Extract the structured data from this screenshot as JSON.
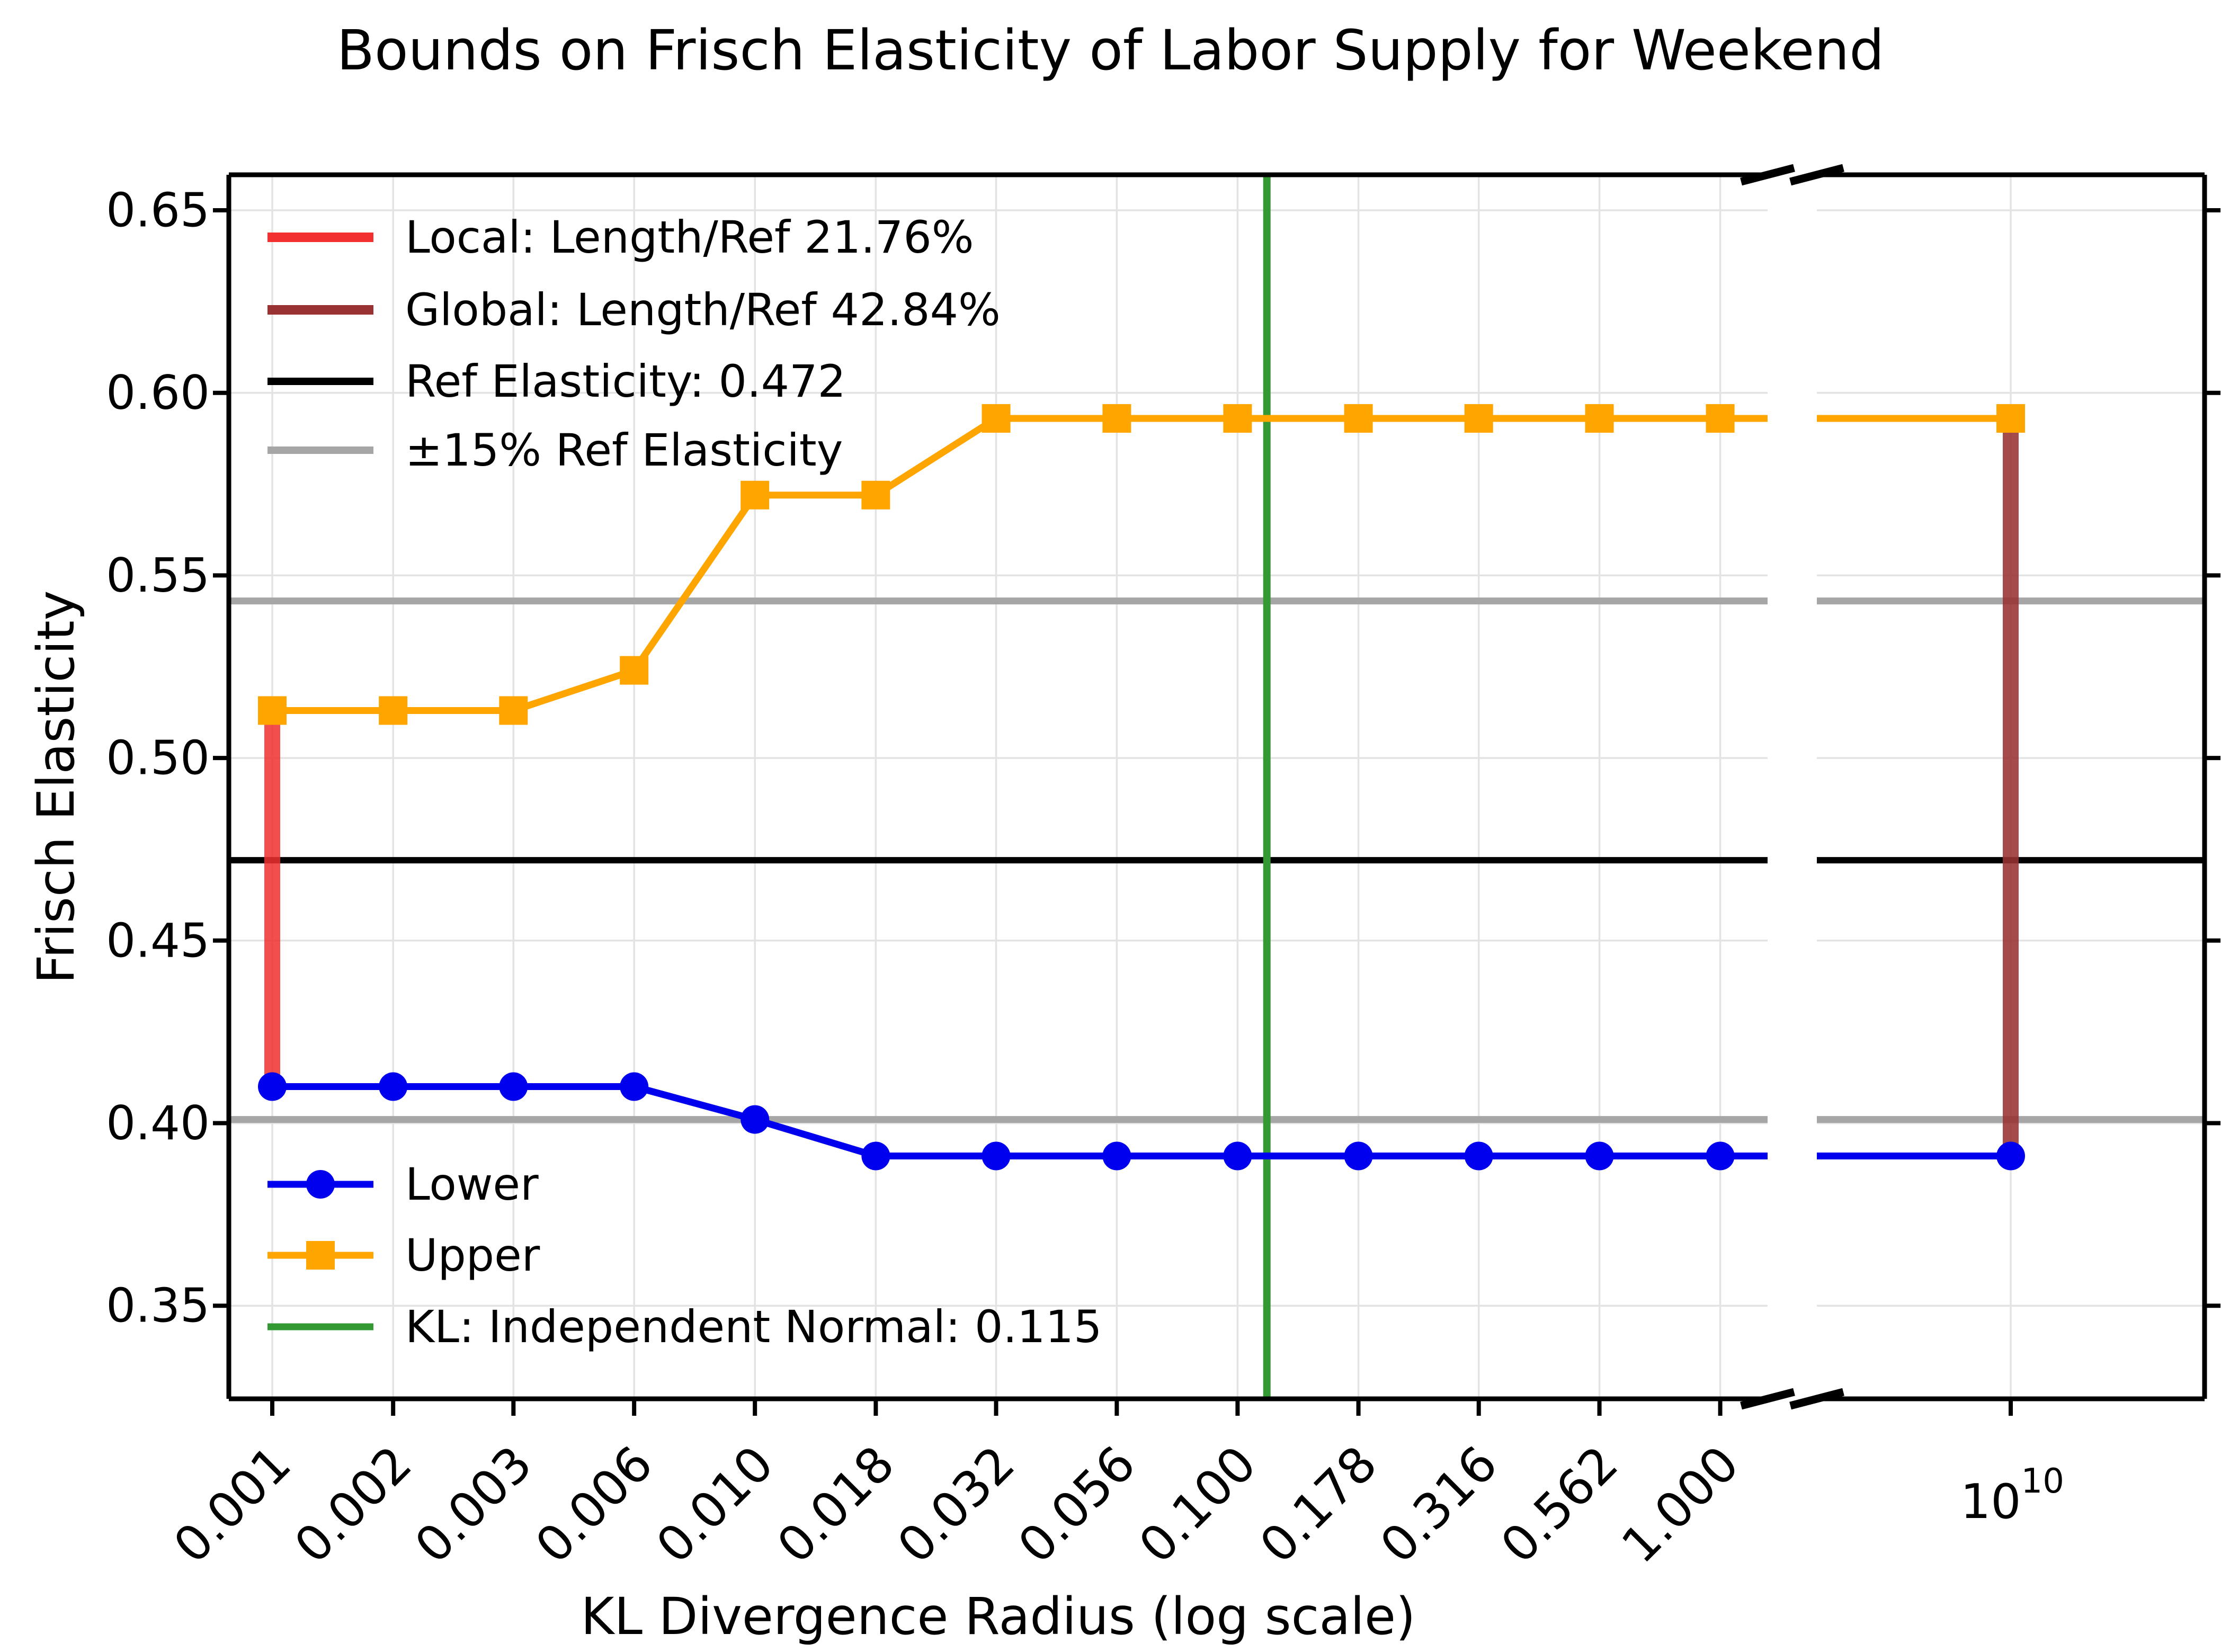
{
  "title": "Bounds on Frisch Elasticity of Labor Supply for Weekend",
  "chart_data": {
    "type": "line",
    "title": "Bounds on Frisch Elasticity of Labor Supply for Weekend",
    "xlabel": "KL Divergence Radius (log scale)",
    "ylabel": "Frisch Elasticity",
    "x_scale": "log",
    "grid": true,
    "ylim": [
      0.325,
      0.66
    ],
    "y_ticks": [
      "0.35",
      "0.40",
      "0.45",
      "0.50",
      "0.55",
      "0.60",
      "0.65"
    ],
    "y_tick_values": [
      0.35,
      0.4,
      0.45,
      0.5,
      0.55,
      0.6,
      0.65
    ],
    "x_tick_labels": [
      "0.001",
      "0.002",
      "0.003",
      "0.006",
      "0.010",
      "0.018",
      "0.032",
      "0.056",
      "0.100",
      "0.178",
      "0.316",
      "0.562",
      "1.000"
    ],
    "x_values": [
      0.001,
      0.00178,
      0.00316,
      0.00562,
      0.01,
      0.0178,
      0.0316,
      0.0562,
      0.1,
      0.178,
      0.316,
      0.562,
      1.0
    ],
    "series": [
      {
        "name": "Lower",
        "color": "#0000ee",
        "marker": "circle",
        "values": [
          0.41,
          0.41,
          0.41,
          0.41,
          0.401,
          0.391,
          0.391,
          0.391,
          0.391,
          0.391,
          0.391,
          0.391,
          0.391
        ],
        "far_value": 0.391
      },
      {
        "name": "Upper",
        "color": "#ffa500",
        "marker": "square",
        "values": [
          0.513,
          0.513,
          0.513,
          0.524,
          0.572,
          0.572,
          0.593,
          0.593,
          0.593,
          0.593,
          0.593,
          0.593,
          0.593
        ],
        "far_value": 0.593
      }
    ],
    "far_axis": {
      "tick_base": "10",
      "tick_exponent": "10"
    },
    "reference": {
      "elasticity": 0.472,
      "band_upper": 0.543,
      "band_lower": 0.401,
      "line_color": "#000000",
      "band_color": "#a6a6a6"
    },
    "kl_vline": {
      "x": 0.115,
      "color": "#339933"
    },
    "local_interval": {
      "x": 0.001,
      "from": 0.41,
      "to": 0.513,
      "color": "#f23030"
    },
    "global_interval": {
      "location": "far",
      "from": 0.391,
      "to": 0.593,
      "color": "#993333"
    },
    "legend_top": [
      {
        "label": "Local: Length/Ref 21.76%",
        "color": "#f23030",
        "lw": 18,
        "marker": null
      },
      {
        "label": "Global: Length/Ref 42.84%",
        "color": "#993333",
        "lw": 18,
        "marker": null
      },
      {
        "label": "Ref Elasticity: 0.472",
        "color": "#000000",
        "lw": 14,
        "marker": null
      },
      {
        "label": "±15% Ref Elasticity",
        "color": "#a6a6a6",
        "lw": 14,
        "marker": null
      }
    ],
    "legend_bottom": [
      {
        "label": "Lower",
        "color": "#0000ee",
        "lw": 13,
        "marker": "circle"
      },
      {
        "label": "Upper",
        "color": "#ffa500",
        "lw": 13,
        "marker": "square"
      },
      {
        "label": "KL: Independent Normal: 0.115",
        "color": "#339933",
        "lw": 13,
        "marker": null
      }
    ]
  }
}
